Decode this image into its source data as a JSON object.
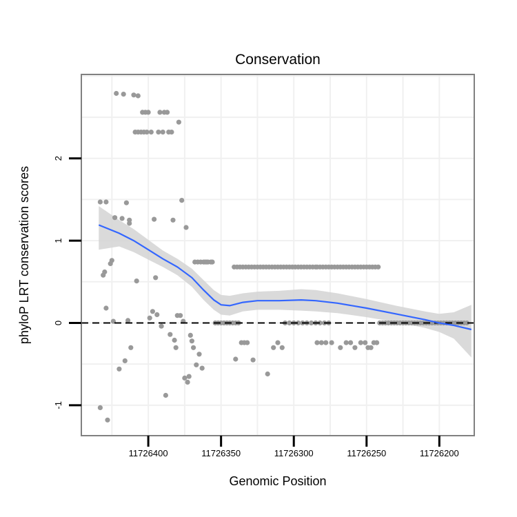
{
  "chart_data": {
    "type": "scatter",
    "title": "Conservation",
    "xlabel": "Genomic Position",
    "ylabel": "phyloP LRT conservation scores",
    "x_reversed": true,
    "xlim": [
      11726446,
      11726176
    ],
    "ylim": [
      -1.37,
      3.02
    ],
    "x_ticks": [
      11726400,
      11726350,
      11726300,
      11726250,
      11726200
    ],
    "x_tick_labels": [
      "11726400",
      "11726350",
      "11726300",
      "11726250",
      "11726200"
    ],
    "y_ticks": [
      -1,
      0,
      1,
      2
    ],
    "y_tick_labels": [
      "-1",
      "0",
      "1",
      "2"
    ],
    "reference_line": {
      "y": 0,
      "style": "dashed",
      "color": "#000000"
    },
    "colors": {
      "points": "#999999",
      "smooth_line": "#3366ff",
      "confidence_band": "#d3d3d3",
      "frame": "#808080",
      "grid": "#f0f0f0"
    },
    "points": [
      [
        11726433,
        -1.03
      ],
      [
        11726433,
        1.47
      ],
      [
        11726431,
        0.58
      ],
      [
        11726430,
        0.62
      ],
      [
        11726429,
        1.47
      ],
      [
        11726429,
        0.18
      ],
      [
        11726428,
        -1.18
      ],
      [
        11726426,
        0.72
      ],
      [
        11726425,
        0.76
      ],
      [
        11726424,
        0.02
      ],
      [
        11726423,
        1.28
      ],
      [
        11726422,
        2.79
      ],
      [
        11726420,
        -0.56
      ],
      [
        11726418,
        1.27
      ],
      [
        11726417,
        2.78
      ],
      [
        11726416,
        -0.46
      ],
      [
        11726415,
        1.46
      ],
      [
        11726414,
        0.03
      ],
      [
        11726413,
        1.25
      ],
      [
        11726413,
        1.21
      ],
      [
        11726412,
        -0.3
      ],
      [
        11726410,
        2.77
      ],
      [
        11726409,
        2.32
      ],
      [
        11726408,
        0.51
      ],
      [
        11726407,
        2.76
      ],
      [
        11726407,
        2.32
      ],
      [
        11726405,
        2.32
      ],
      [
        11726404,
        2.56
      ],
      [
        11726403,
        2.32
      ],
      [
        11726402,
        2.56
      ],
      [
        11726401,
        2.32
      ],
      [
        11726400,
        2.56
      ],
      [
        11726399,
        0.06
      ],
      [
        11726398,
        2.32
      ],
      [
        11726397,
        0.14
      ],
      [
        11726396,
        1.26
      ],
      [
        11726395,
        0.55
      ],
      [
        11726394,
        0.1
      ],
      [
        11726393,
        2.32
      ],
      [
        11726392,
        2.56
      ],
      [
        11726391,
        -0.04
      ],
      [
        11726390,
        2.32
      ],
      [
        11726389,
        2.56
      ],
      [
        11726388,
        -0.88
      ],
      [
        11726387,
        2.56
      ],
      [
        11726386,
        2.32
      ],
      [
        11726385,
        -0.14
      ],
      [
        11726384,
        2.32
      ],
      [
        11726383,
        1.25
      ],
      [
        11726382,
        -0.21
      ],
      [
        11726381,
        -0.3
      ],
      [
        11726380,
        0.09
      ],
      [
        11726379,
        2.44
      ],
      [
        11726378,
        0.09
      ],
      [
        11726377,
        1.49
      ],
      [
        11726376,
        0.02
      ],
      [
        11726375,
        -0.67
      ],
      [
        11726374,
        1.16
      ],
      [
        11726373,
        -0.72
      ],
      [
        11726372,
        -0.65
      ],
      [
        11726371,
        -0.15
      ],
      [
        11726370,
        -0.22
      ],
      [
        11726369,
        -0.3
      ],
      [
        11726368,
        0.74
      ],
      [
        11726367,
        -0.51
      ],
      [
        11726366,
        0.74
      ],
      [
        11726365,
        -0.38
      ],
      [
        11726364,
        0.74
      ],
      [
        11726363,
        -0.55
      ],
      [
        11726362,
        0.74
      ],
      [
        11726361,
        0.74
      ],
      [
        11726360,
        0.74
      ],
      [
        11726359,
        0.74
      ],
      [
        11726357,
        0.74
      ],
      [
        11726356,
        0.74
      ],
      [
        11726354,
        0.0
      ],
      [
        11726352,
        0.0
      ],
      [
        11726350,
        0.0
      ],
      [
        11726348,
        0.0
      ],
      [
        11726346,
        0.0
      ],
      [
        11726344,
        0.0
      ],
      [
        11726342,
        0.0
      ],
      [
        11726340,
        0.0
      ],
      [
        11726338,
        0.0
      ],
      [
        11726341,
        0.68
      ],
      [
        11726339,
        0.68
      ],
      [
        11726337,
        0.68
      ],
      [
        11726335,
        0.68
      ],
      [
        11726333,
        0.68
      ],
      [
        11726331,
        0.68
      ],
      [
        11726329,
        0.68
      ],
      [
        11726327,
        0.68
      ],
      [
        11726325,
        0.68
      ],
      [
        11726323,
        0.68
      ],
      [
        11726321,
        0.68
      ],
      [
        11726319,
        0.68
      ],
      [
        11726317,
        0.68
      ],
      [
        11726315,
        0.68
      ],
      [
        11726313,
        0.68
      ],
      [
        11726311,
        0.68
      ],
      [
        11726309,
        0.68
      ],
      [
        11726307,
        0.68
      ],
      [
        11726305,
        0.68
      ],
      [
        11726303,
        0.68
      ],
      [
        11726301,
        0.68
      ],
      [
        11726299,
        0.68
      ],
      [
        11726297,
        0.68
      ],
      [
        11726295,
        0.68
      ],
      [
        11726293,
        0.68
      ],
      [
        11726291,
        0.68
      ],
      [
        11726289,
        0.68
      ],
      [
        11726287,
        0.68
      ],
      [
        11726285,
        0.68
      ],
      [
        11726340,
        -0.44
      ],
      [
        11726336,
        -0.24
      ],
      [
        11726334,
        -0.24
      ],
      [
        11726332,
        -0.24
      ],
      [
        11726328,
        -0.45
      ],
      [
        11726318,
        -0.62
      ],
      [
        11726314,
        -0.3
      ],
      [
        11726311,
        -0.24
      ],
      [
        11726308,
        -0.3
      ],
      [
        11726306,
        0.0
      ],
      [
        11726303,
        0.0
      ],
      [
        11726300,
        0.0
      ],
      [
        11726297,
        0.0
      ],
      [
        11726294,
        0.0
      ],
      [
        11726291,
        0.0
      ],
      [
        11726288,
        0.0
      ],
      [
        11726285,
        0.0
      ],
      [
        11726282,
        0.0
      ],
      [
        11726279,
        0.0
      ],
      [
        11726276,
        0.0
      ],
      [
        11726284,
        0.68
      ],
      [
        11726282,
        0.68
      ],
      [
        11726280,
        0.68
      ],
      [
        11726278,
        0.68
      ],
      [
        11726276,
        0.68
      ],
      [
        11726274,
        0.68
      ],
      [
        11726272,
        0.68
      ],
      [
        11726270,
        0.68
      ],
      [
        11726268,
        0.68
      ],
      [
        11726266,
        0.68
      ],
      [
        11726264,
        0.68
      ],
      [
        11726262,
        0.68
      ],
      [
        11726260,
        0.68
      ],
      [
        11726258,
        0.68
      ],
      [
        11726256,
        0.68
      ],
      [
        11726254,
        0.68
      ],
      [
        11726252,
        0.68
      ],
      [
        11726250,
        0.68
      ],
      [
        11726248,
        0.68
      ],
      [
        11726246,
        0.68
      ],
      [
        11726244,
        0.68
      ],
      [
        11726242,
        0.68
      ],
      [
        11726284,
        -0.24
      ],
      [
        11726281,
        -0.24
      ],
      [
        11726278,
        -0.24
      ],
      [
        11726274,
        -0.24
      ],
      [
        11726268,
        -0.3
      ],
      [
        11726264,
        -0.24
      ],
      [
        11726261,
        -0.24
      ],
      [
        11726258,
        -0.3
      ],
      [
        11726254,
        -0.24
      ],
      [
        11726251,
        -0.24
      ],
      [
        11726249,
        -0.3
      ],
      [
        11726247,
        -0.3
      ],
      [
        11726245,
        -0.24
      ],
      [
        11726243,
        -0.24
      ],
      [
        11726241,
        0.0
      ],
      [
        11726239,
        0.0
      ],
      [
        11726237,
        0.0
      ],
      [
        11726235,
        0.0
      ],
      [
        11726233,
        0.0
      ],
      [
        11726231,
        0.0
      ],
      [
        11726229,
        0.0
      ],
      [
        11726227,
        0.0
      ],
      [
        11726225,
        0.0
      ],
      [
        11726223,
        0.0
      ],
      [
        11726221,
        0.0
      ],
      [
        11726219,
        0.0
      ],
      [
        11726217,
        0.0
      ],
      [
        11726215,
        0.0
      ],
      [
        11726213,
        0.0
      ],
      [
        11726211,
        0.0
      ],
      [
        11726209,
        0.0
      ],
      [
        11726207,
        0.0
      ],
      [
        11726205,
        0.0
      ],
      [
        11726203,
        0.0
      ],
      [
        11726201,
        0.0
      ],
      [
        11726199,
        0.0
      ],
      [
        11726197,
        0.0
      ],
      [
        11726195,
        0.0
      ],
      [
        11726193,
        0.0
      ],
      [
        11726191,
        0.0
      ],
      [
        11726189,
        0.0
      ],
      [
        11726187,
        0.0
      ],
      [
        11726185,
        0.0
      ],
      [
        11726183,
        0.0
      ],
      [
        11726181,
        0.0
      ]
    ],
    "smooth_line": [
      [
        11726434,
        1.19
      ],
      [
        11726420,
        1.09
      ],
      [
        11726410,
        1.0
      ],
      [
        11726400,
        0.89
      ],
      [
        11726390,
        0.78
      ],
      [
        11726380,
        0.68
      ],
      [
        11726370,
        0.55
      ],
      [
        11726362,
        0.4
      ],
      [
        11726355,
        0.28
      ],
      [
        11726350,
        0.22
      ],
      [
        11726344,
        0.21
      ],
      [
        11726335,
        0.25
      ],
      [
        11726325,
        0.27
      ],
      [
        11726310,
        0.27
      ],
      [
        11726295,
        0.28
      ],
      [
        11726285,
        0.27
      ],
      [
        11726270,
        0.24
      ],
      [
        11726250,
        0.18
      ],
      [
        11726230,
        0.11
      ],
      [
        11726210,
        0.04
      ],
      [
        11726200,
        0.0
      ],
      [
        11726190,
        -0.03
      ],
      [
        11726178,
        -0.08
      ]
    ],
    "band_upper": [
      [
        11726434,
        1.42
      ],
      [
        11726420,
        1.25
      ],
      [
        11726410,
        1.14
      ],
      [
        11726400,
        1.01
      ],
      [
        11726390,
        0.88
      ],
      [
        11726380,
        0.78
      ],
      [
        11726370,
        0.66
      ],
      [
        11726362,
        0.52
      ],
      [
        11726355,
        0.4
      ],
      [
        11726350,
        0.34
      ],
      [
        11726344,
        0.33
      ],
      [
        11726335,
        0.36
      ],
      [
        11726325,
        0.38
      ],
      [
        11726310,
        0.39
      ],
      [
        11726295,
        0.41
      ],
      [
        11726285,
        0.4
      ],
      [
        11726270,
        0.36
      ],
      [
        11726250,
        0.29
      ],
      [
        11726230,
        0.21
      ],
      [
        11726210,
        0.14
      ],
      [
        11726200,
        0.11
      ],
      [
        11726190,
        0.13
      ],
      [
        11726178,
        0.22
      ]
    ],
    "band_lower": [
      [
        11726434,
        0.89
      ],
      [
        11726420,
        0.93
      ],
      [
        11726410,
        0.86
      ],
      [
        11726400,
        0.77
      ],
      [
        11726390,
        0.68
      ],
      [
        11726380,
        0.58
      ],
      [
        11726370,
        0.44
      ],
      [
        11726362,
        0.28
      ],
      [
        11726355,
        0.16
      ],
      [
        11726350,
        0.1
      ],
      [
        11726344,
        0.09
      ],
      [
        11726335,
        0.14
      ],
      [
        11726325,
        0.16
      ],
      [
        11726310,
        0.16
      ],
      [
        11726295,
        0.15
      ],
      [
        11726285,
        0.14
      ],
      [
        11726270,
        0.12
      ],
      [
        11726250,
        0.07
      ],
      [
        11726230,
        0.01
      ],
      [
        11726210,
        -0.06
      ],
      [
        11726200,
        -0.11
      ],
      [
        11726190,
        -0.19
      ],
      [
        11726178,
        -0.42
      ]
    ]
  }
}
